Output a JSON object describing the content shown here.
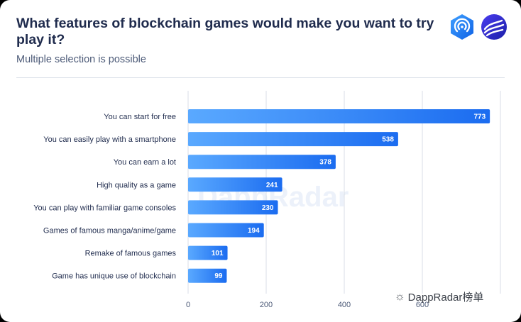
{
  "header": {
    "title": "What features of blockchain games would make you want to try play it?",
    "subtitle": "Multiple selection is possible"
  },
  "colors": {
    "bar_start": "#5aa9ff",
    "bar_end": "#1b6cf0",
    "title": "#1f2b4d",
    "grid": "#d9dee7"
  },
  "icons": [
    "dappradar-logo-icon",
    "wave-logo-icon",
    "wechat-icon"
  ],
  "watermark": {
    "text": "DappRadar"
  },
  "source_badge": {
    "text": "DappRadar榜单"
  },
  "chart_data": {
    "type": "bar",
    "orientation": "horizontal",
    "categories": [
      "You  can start for free",
      "You can easily play with a smartphone",
      "You can earn a lot",
      "High quality as a game",
      "You can play with familiar game consoles",
      "Games of famous manga/anime/game",
      "Remake of famous games",
      "Game has unique use of blockchain"
    ],
    "values": [
      773,
      538,
      378,
      241,
      230,
      194,
      101,
      99
    ],
    "xlim": [
      0,
      800
    ],
    "xticks": [
      0,
      200,
      400,
      600
    ],
    "grid": true,
    "data_labels": true
  }
}
